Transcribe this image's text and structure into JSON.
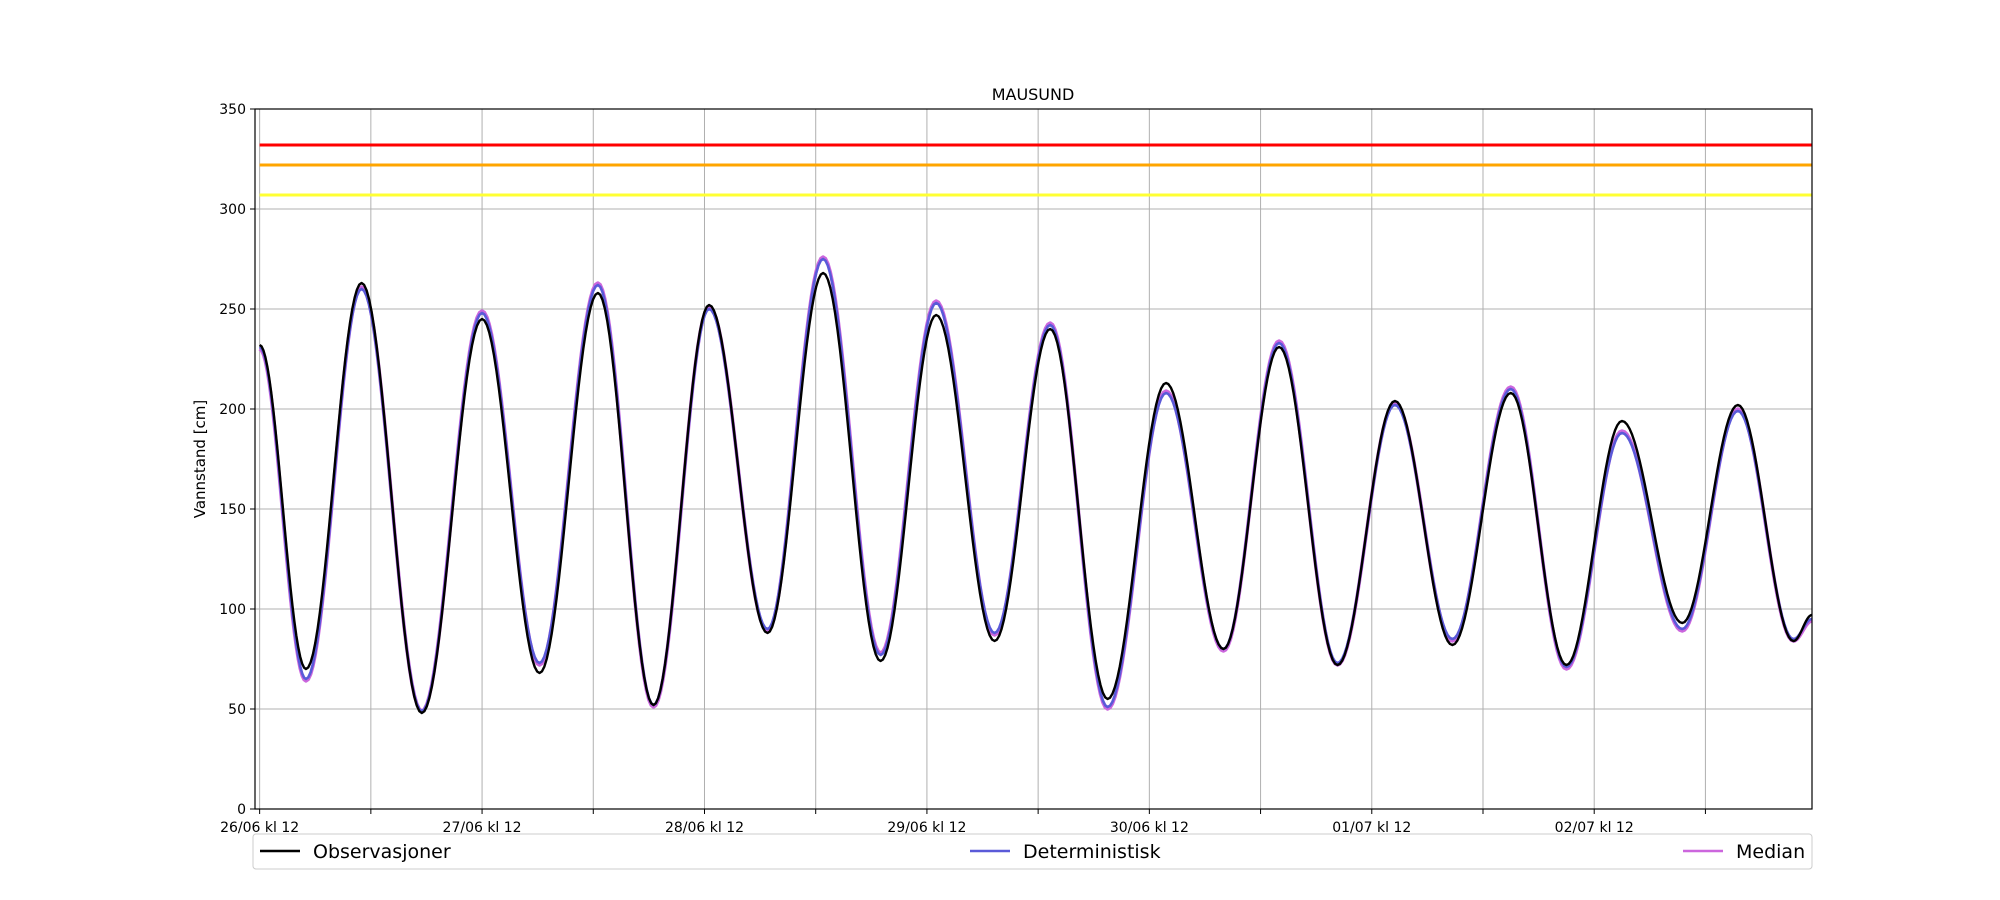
{
  "chart_data": {
    "type": "line",
    "title": "MAUSUND",
    "xlabel": "",
    "ylabel": "Vannstand [cm]",
    "ylim": [
      0,
      350
    ],
    "yticks": [
      0,
      50,
      100,
      150,
      200,
      250,
      300,
      350
    ],
    "xlim_hours": [
      -0.5,
      167.5
    ],
    "x_ticks": [
      {
        "hour": 0,
        "label": "26/06 kl 12"
      },
      {
        "hour": 12,
        "label": ""
      },
      {
        "hour": 24,
        "label": "27/06 kl 12"
      },
      {
        "hour": 36,
        "label": ""
      },
      {
        "hour": 48,
        "label": "28/06 kl 12"
      },
      {
        "hour": 60,
        "label": ""
      },
      {
        "hour": 72,
        "label": "29/06 kl 12"
      },
      {
        "hour": 84,
        "label": ""
      },
      {
        "hour": 96,
        "label": "30/06 kl 12"
      },
      {
        "hour": 108,
        "label": ""
      },
      {
        "hour": 120,
        "label": "01/07 kl 12"
      },
      {
        "hour": 132,
        "label": ""
      },
      {
        "hour": 144,
        "label": "02/07 kl 12"
      },
      {
        "hour": 156,
        "label": ""
      }
    ],
    "grid": true,
    "legend_position": "bottom",
    "thresholds": [
      {
        "value": 332,
        "color": "#ff0000"
      },
      {
        "value": 322,
        "color": "#ffa500"
      },
      {
        "value": 307,
        "color": "#ffff33"
      }
    ],
    "series": [
      {
        "name": "Observasjoner",
        "color": "#000000",
        "points": [
          [
            0,
            232
          ],
          [
            5,
            70
          ],
          [
            11,
            263
          ],
          [
            17.5,
            48
          ],
          [
            24,
            245
          ],
          [
            30.2,
            68
          ],
          [
            36.5,
            258
          ],
          [
            42.5,
            52
          ],
          [
            48.5,
            252
          ],
          [
            54.8,
            88
          ],
          [
            60.8,
            268
          ],
          [
            67,
            74
          ],
          [
            73,
            247
          ],
          [
            79.3,
            84
          ],
          [
            85.3,
            240
          ],
          [
            91.5,
            55
          ],
          [
            97.8,
            213
          ],
          [
            104,
            80
          ],
          [
            110,
            231
          ],
          [
            116.3,
            72
          ],
          [
            122.5,
            204
          ],
          [
            128.7,
            82
          ],
          [
            135,
            208
          ],
          [
            141,
            72
          ],
          [
            147,
            194
          ],
          [
            153.5,
            93
          ],
          [
            159.5,
            202
          ],
          [
            165.5,
            84
          ],
          [
            167.5,
            97
          ]
        ]
      },
      {
        "name": "Deterministisk",
        "color": "#5a5ad8",
        "points": [
          [
            0,
            231
          ],
          [
            5,
            65
          ],
          [
            11,
            260
          ],
          [
            17.5,
            49
          ],
          [
            24,
            248
          ],
          [
            30.2,
            73
          ],
          [
            36.5,
            262
          ],
          [
            42.5,
            52
          ],
          [
            48.5,
            250
          ],
          [
            54.8,
            90
          ],
          [
            60.8,
            275
          ],
          [
            67,
            77
          ],
          [
            73,
            253
          ],
          [
            79.3,
            88
          ],
          [
            85.3,
            242
          ],
          [
            91.5,
            51
          ],
          [
            97.8,
            208
          ],
          [
            104,
            80
          ],
          [
            110,
            233
          ],
          [
            116.3,
            73
          ],
          [
            122.5,
            202
          ],
          [
            128.7,
            85
          ],
          [
            135,
            210
          ],
          [
            141,
            71
          ],
          [
            147,
            188
          ],
          [
            153.5,
            90
          ],
          [
            159.5,
            199
          ],
          [
            165.5,
            85
          ],
          [
            167.5,
            95
          ]
        ]
      },
      {
        "name": "Median",
        "color": "#cc66dd",
        "points": [
          [
            0,
            230
          ],
          [
            5,
            64
          ],
          [
            11,
            261
          ],
          [
            17.5,
            49
          ],
          [
            24,
            249
          ],
          [
            30.2,
            72
          ],
          [
            36.5,
            263
          ],
          [
            42.5,
            51
          ],
          [
            48.5,
            251
          ],
          [
            54.8,
            89
          ],
          [
            60.8,
            276
          ],
          [
            67,
            78
          ],
          [
            73,
            254
          ],
          [
            79.3,
            87
          ],
          [
            85.3,
            243
          ],
          [
            91.5,
            50
          ],
          [
            97.8,
            209
          ],
          [
            104,
            79
          ],
          [
            110,
            234
          ],
          [
            116.3,
            72
          ],
          [
            122.5,
            203
          ],
          [
            128.7,
            84
          ],
          [
            135,
            211
          ],
          [
            141,
            70
          ],
          [
            147,
            189
          ],
          [
            153.5,
            89
          ],
          [
            159.5,
            200
          ],
          [
            165.5,
            84
          ],
          [
            167.5,
            94
          ]
        ]
      }
    ]
  }
}
